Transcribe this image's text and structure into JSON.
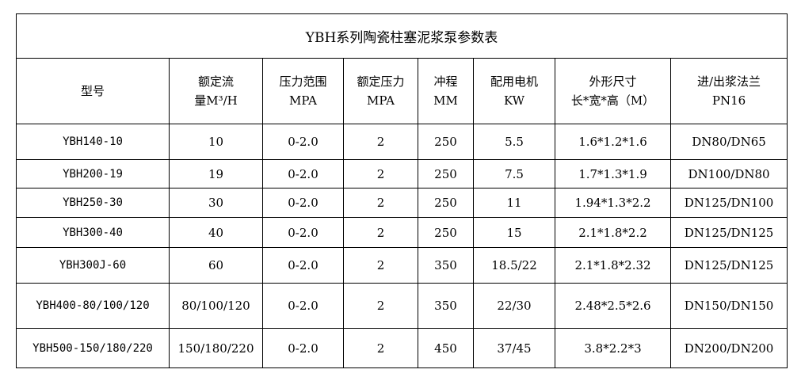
{
  "title": "YBH系列陶瓷柱塞泥浆泵参数表",
  "headers": [
    {
      "l1": "型号",
      "l2": ""
    },
    {
      "l1": "额定流",
      "l2": "量M³/H"
    },
    {
      "l1": "压力范围",
      "l2": "MPA"
    },
    {
      "l1": "额定压力",
      "l2": "MPA"
    },
    {
      "l1": "冲程",
      "l2": "MM"
    },
    {
      "l1": "配用电机",
      "l2": "KW"
    },
    {
      "l1": "外形尺寸",
      "l2": "长*宽*高（M）"
    },
    {
      "l1": "进/出浆法兰",
      "l2": "PN16"
    }
  ],
  "rows": [
    [
      "YBH140-10",
      "10",
      "0-2.0",
      "2",
      "250",
      "5.5",
      "1.6*1.2*1.6",
      "DN80/DN65"
    ],
    [
      "YBH200-19",
      "19",
      "0-2.0",
      "2",
      "250",
      "7.5",
      "1.7*1.3*1.9",
      "DN100/DN80"
    ],
    [
      "YBH250-30",
      "30",
      "0-2.0",
      "2",
      "250",
      "11",
      "1.94*1.3*2.2",
      "DN125/DN100"
    ],
    [
      "YBH300-40",
      "40",
      "0-2.0",
      "2",
      "250",
      "15",
      "2.1*1.8*2.2",
      "DN125/DN125"
    ],
    [
      "YBH300J-60",
      "60",
      "0-2.0",
      "2",
      "350",
      "18.5/22",
      "2.1*1.8*2.32",
      "DN125/DN125"
    ],
    [
      "YBH400-80/100/120",
      "80/100/120",
      "0-2.0",
      "2",
      "350",
      "22/30",
      "2.48*2.5*2.6",
      "DN150/DN150"
    ],
    [
      "YBH500-150/180/220",
      "150/180/220",
      "0-2.0",
      "2",
      "450",
      "37/45",
      "3.8*2.2*3",
      "DN200/DN200"
    ]
  ]
}
